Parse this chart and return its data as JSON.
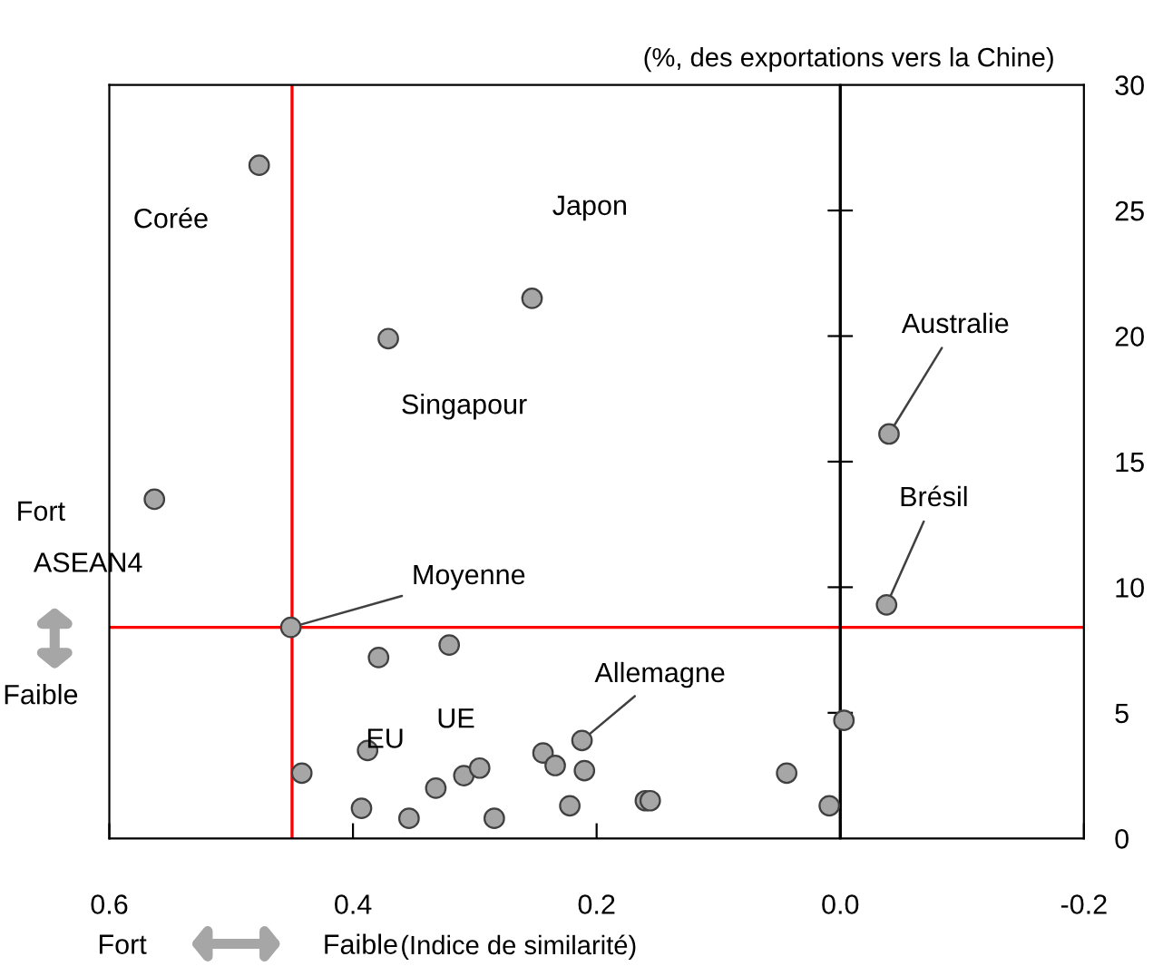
{
  "chart_data": {
    "type": "scatter",
    "ylabel": "(%, des exportations vers la Chine)",
    "xlabel": "(Indice de similarité)",
    "x": [
      0.477,
      0.253,
      0.371,
      -0.04,
      0.563,
      0.451,
      -0.038,
      0.379,
      0.321,
      0.388,
      0.442,
      0.393,
      0.354,
      0.332,
      0.309,
      0.296,
      0.284,
      0.244,
      0.234,
      0.212,
      0.21,
      0.222,
      0.16,
      0.156,
      0.044,
      -0.003,
      0.009
    ],
    "series": [
      {
        "color": "#a6a6a6",
        "values": [
          26.8,
          21.5,
          19.9,
          16.1,
          13.5,
          8.4,
          9.3,
          7.2,
          7.7,
          3.5,
          2.6,
          1.2,
          0.8,
          2.0,
          2.5,
          2.8,
          0.8,
          3.4,
          2.9,
          3.9,
          2.7,
          1.3,
          1.5,
          1.5,
          2.6,
          4.7,
          1.3
        ]
      }
    ],
    "xlim": [
      0.6,
      -0.2
    ],
    "xticks": [
      {
        "value": 0.6,
        "label": "0.6"
      },
      {
        "value": 0.4,
        "label": "0.4"
      },
      {
        "value": 0.2,
        "label": "0.2"
      },
      {
        "value": 0.0,
        "label": "0.0"
      },
      {
        "value": -0.2,
        "label": "-0.2"
      }
    ],
    "ylim": [
      0,
      30
    ],
    "yticks": [
      0,
      5,
      10,
      15,
      20,
      25,
      30
    ],
    "ref_lines": [
      {
        "axis": "x",
        "value": 0.45,
        "color": "#ff0000"
      },
      {
        "axis": "y",
        "value": 8.4,
        "color": "#ff0000"
      },
      {
        "axis": "x",
        "value": 0,
        "color": "#000000"
      }
    ],
    "annotations": [
      {
        "text": "Corée",
        "x": 0.477,
        "y": 26.8
      },
      {
        "text": "Japon",
        "x": 0.253,
        "y": 21.5
      },
      {
        "text": "Singapour",
        "x": 0.371,
        "y": 19.9
      },
      {
        "text": "Australie",
        "x": -0.04,
        "y": 16.1
      },
      {
        "text": "ASEAN4",
        "x": 0.563,
        "y": 13.5
      },
      {
        "text": "Moyenne",
        "x": 0.451,
        "y": 8.4
      },
      {
        "text": "Brésil",
        "x": -0.038,
        "y": 9.3
      },
      {
        "text": "EU",
        "x": 0.379,
        "y": 7.2
      },
      {
        "text": "UE",
        "x": 0.321,
        "y": 7.7
      },
      {
        "text": "Allemagne",
        "x": 0.212,
        "y": 3.9
      },
      "Fort",
      "Faible",
      "Fort",
      "Faible"
    ],
    "marker": "circle",
    "grid": false,
    "legend": false
  }
}
